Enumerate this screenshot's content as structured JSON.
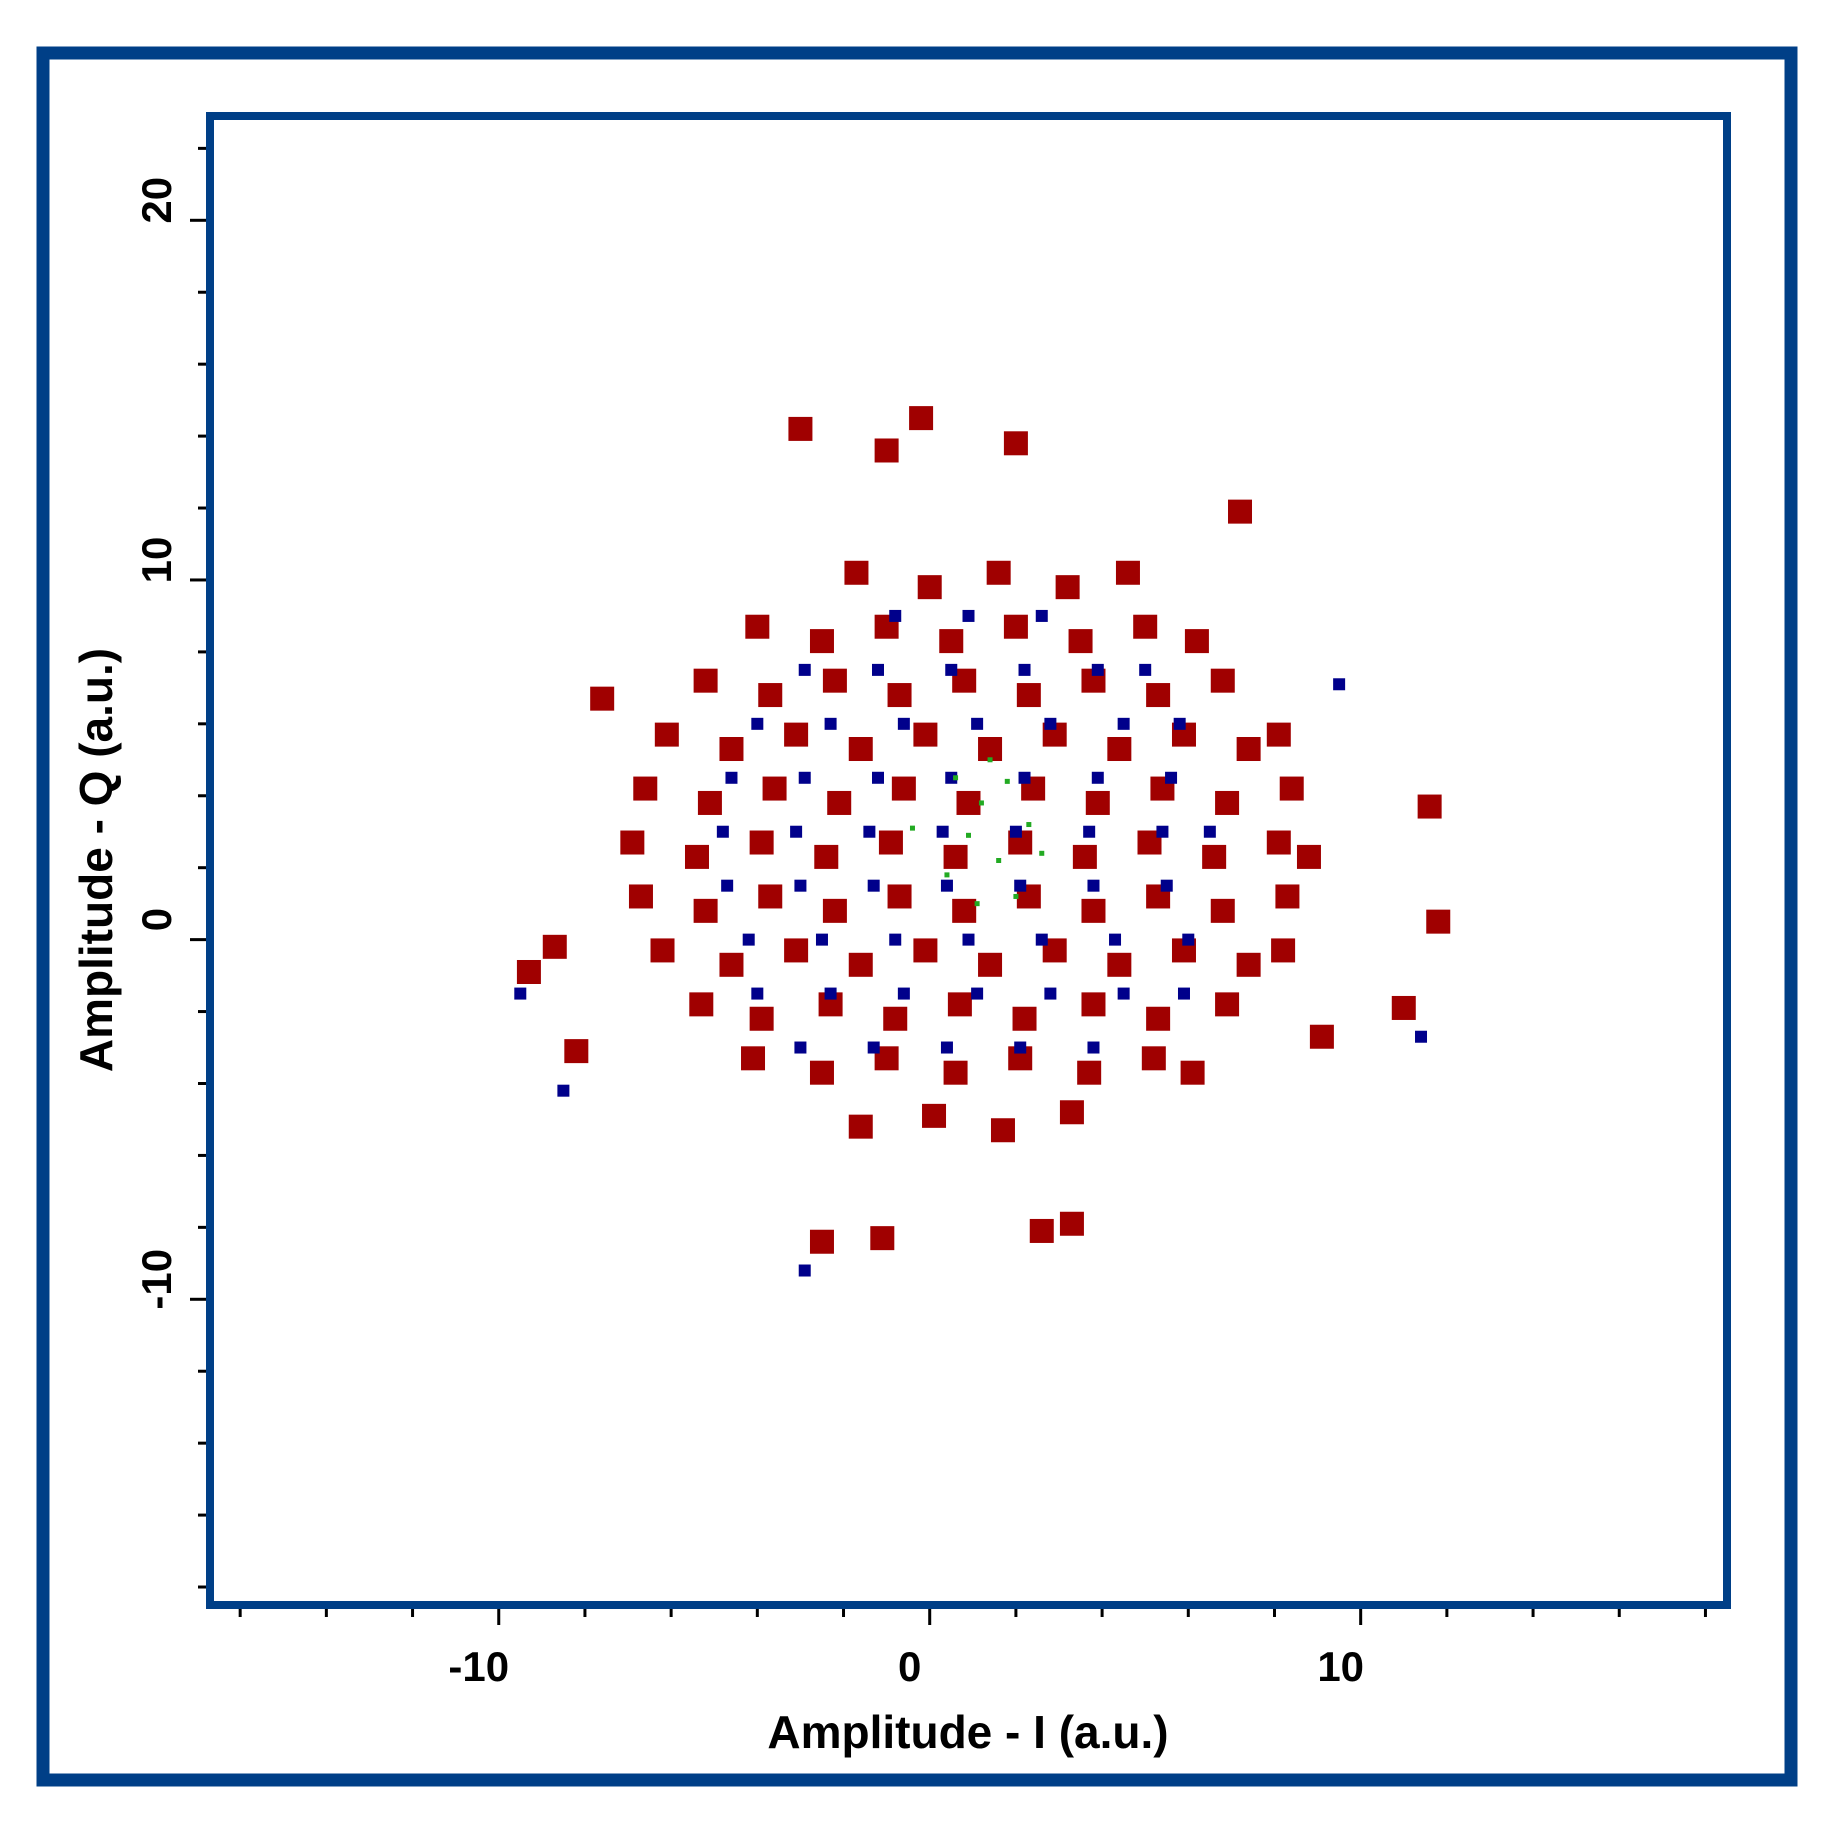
{
  "chart_data": {
    "type": "scatter",
    "xlabel": "Amplitude - I (a.u.)",
    "ylabel": "Amplitude - Q (a.u.)",
    "xlim": [
      -16.7,
      18.5
    ],
    "ylim": [
      -18.5,
      22.9
    ],
    "xticks": [
      -10,
      0,
      10
    ],
    "yticks": [
      -10,
      0,
      10,
      20
    ],
    "xminorticks": [
      -16,
      -14,
      -12,
      -8,
      -6,
      -4,
      -2,
      2,
      4,
      6,
      8,
      12,
      14,
      16,
      18
    ],
    "yminorticks": [
      -18,
      -16,
      -14,
      -12,
      -8,
      -6,
      -4,
      -2,
      2,
      4,
      6,
      8,
      12,
      14,
      16,
      18,
      22
    ],
    "series": [
      {
        "color": "#a00000",
        "x": [
          -1.6,
          0.1,
          1.7,
          3.3,
          -4.1,
          -2.5,
          -1.0,
          0.6,
          2.1,
          3.7,
          5.2,
          6.1,
          -5.3,
          -3.9,
          -2.3,
          -0.8,
          0.7,
          2.2,
          3.8,
          5.3,
          6.9,
          -6.2,
          -4.6,
          -3.1,
          -1.6,
          -0.1,
          1.4,
          2.9,
          4.4,
          5.9,
          7.4,
          8.2,
          -6.7,
          -5.2,
          -3.7,
          -2.2,
          -0.7,
          0.8,
          2.3,
          3.8,
          5.3,
          6.8,
          8.3,
          -6.9,
          -5.4,
          -3.9,
          -2.4,
          -0.9,
          0.6,
          2.1,
          3.6,
          5.1,
          6.6,
          8.1,
          8.8,
          -6.6,
          -5.1,
          -3.6,
          -2.1,
          -0.6,
          0.9,
          2.4,
          3.9,
          5.4,
          6.9,
          8.4,
          -6.1,
          -4.6,
          -3.1,
          -1.6,
          -0.1,
          1.4,
          2.9,
          4.4,
          5.9,
          7.4,
          8.1,
          -5.2,
          -3.7,
          -2.2,
          -0.7,
          0.8,
          2.3,
          3.8,
          5.3,
          6.8,
          -4.0,
          -2.5,
          -1.0,
          0.5,
          2.0,
          3.5,
          5.0,
          6.2,
          -1.7,
          0.0,
          1.6,
          3.2,
          4.6,
          -3.0,
          -0.2,
          2.0,
          -1.0,
          7.2,
          11.6,
          11.8,
          11.0,
          -8.2,
          -8.7,
          -9.3,
          -7.6,
          -1.1,
          2.6,
          -2.5,
          9.1,
          3.3
        ],
        "values": [
          -5.2,
          -4.9,
          -5.3,
          -4.8,
          -3.3,
          -3.7,
          -3.3,
          -3.7,
          -3.3,
          -3.7,
          -3.3,
          -3.7,
          -1.8,
          -2.2,
          -1.8,
          -2.2,
          -1.8,
          -2.2,
          -1.8,
          -2.2,
          -1.8,
          -0.3,
          -0.7,
          -0.3,
          -0.7,
          -0.3,
          -0.7,
          -0.3,
          -0.7,
          -0.3,
          -0.7,
          -0.3,
          1.2,
          0.8,
          1.2,
          0.8,
          1.2,
          0.8,
          1.2,
          0.8,
          1.2,
          0.8,
          1.2,
          2.7,
          2.3,
          2.7,
          2.3,
          2.7,
          2.3,
          2.7,
          2.3,
          2.7,
          2.3,
          2.7,
          2.3,
          4.2,
          3.8,
          4.2,
          3.8,
          4.2,
          3.8,
          4.2,
          3.8,
          4.2,
          3.8,
          4.2,
          5.7,
          5.3,
          5.7,
          5.3,
          5.7,
          5.3,
          5.7,
          5.3,
          5.7,
          5.3,
          5.7,
          7.2,
          6.8,
          7.2,
          6.8,
          7.2,
          6.8,
          7.2,
          6.8,
          7.2,
          8.7,
          8.3,
          8.7,
          8.3,
          8.7,
          8.3,
          8.7,
          8.3,
          10.2,
          9.8,
          10.2,
          9.8,
          10.2,
          14.2,
          14.5,
          13.8,
          13.6,
          11.9,
          3.7,
          0.5,
          -1.9,
          -3.1,
          -0.2,
          -0.9,
          6.7,
          -8.3,
          -8.1,
          -8.4,
          -2.7,
          -7.9
        ]
      },
      {
        "color": "#00008b",
        "x": [
          -3.0,
          -1.3,
          0.4,
          2.1,
          3.8,
          -4.0,
          -2.3,
          -0.6,
          1.1,
          2.8,
          4.5,
          5.9,
          -4.2,
          -2.5,
          -0.8,
          0.9,
          2.6,
          4.3,
          6.0,
          -4.7,
          -3.0,
          -1.3,
          0.4,
          2.1,
          3.8,
          5.5,
          -4.8,
          -3.1,
          -1.4,
          0.3,
          2.0,
          3.7,
          5.4,
          6.5,
          -4.6,
          -2.9,
          -1.2,
          0.5,
          2.2,
          3.9,
          5.6,
          -4.0,
          -2.3,
          -0.6,
          1.1,
          2.8,
          4.5,
          5.8,
          -2.9,
          -1.2,
          0.5,
          2.2,
          3.9,
          5.0,
          -0.8,
          0.9,
          2.6,
          -9.5,
          -8.5,
          -2.9,
          11.4,
          9.5
        ],
        "values": [
          -3.0,
          -3.0,
          -3.0,
          -3.0,
          -3.0,
          -1.5,
          -1.5,
          -1.5,
          -1.5,
          -1.5,
          -1.5,
          -1.5,
          0.0,
          0.0,
          0.0,
          0.0,
          0.0,
          0.0,
          0.0,
          1.5,
          1.5,
          1.5,
          1.5,
          1.5,
          1.5,
          1.5,
          3.0,
          3.0,
          3.0,
          3.0,
          3.0,
          3.0,
          3.0,
          3.0,
          4.5,
          4.5,
          4.5,
          4.5,
          4.5,
          4.5,
          4.5,
          6.0,
          6.0,
          6.0,
          6.0,
          6.0,
          6.0,
          6.0,
          7.5,
          7.5,
          7.5,
          7.5,
          7.5,
          7.5,
          9.0,
          9.0,
          9.0,
          -1.5,
          -4.2,
          -9.2,
          -2.7,
          7.1
        ]
      },
      {
        "color": "#22aa22",
        "x": [
          0.6,
          1.2,
          1.8,
          2.3,
          0.9,
          1.6,
          2.0,
          0.4,
          1.1,
          2.6,
          -0.4,
          1.4
        ],
        "values": [
          4.5,
          3.8,
          4.4,
          3.2,
          2.9,
          2.2,
          1.2,
          1.8,
          1.0,
          2.4,
          3.1,
          5.0
        ]
      }
    ]
  }
}
